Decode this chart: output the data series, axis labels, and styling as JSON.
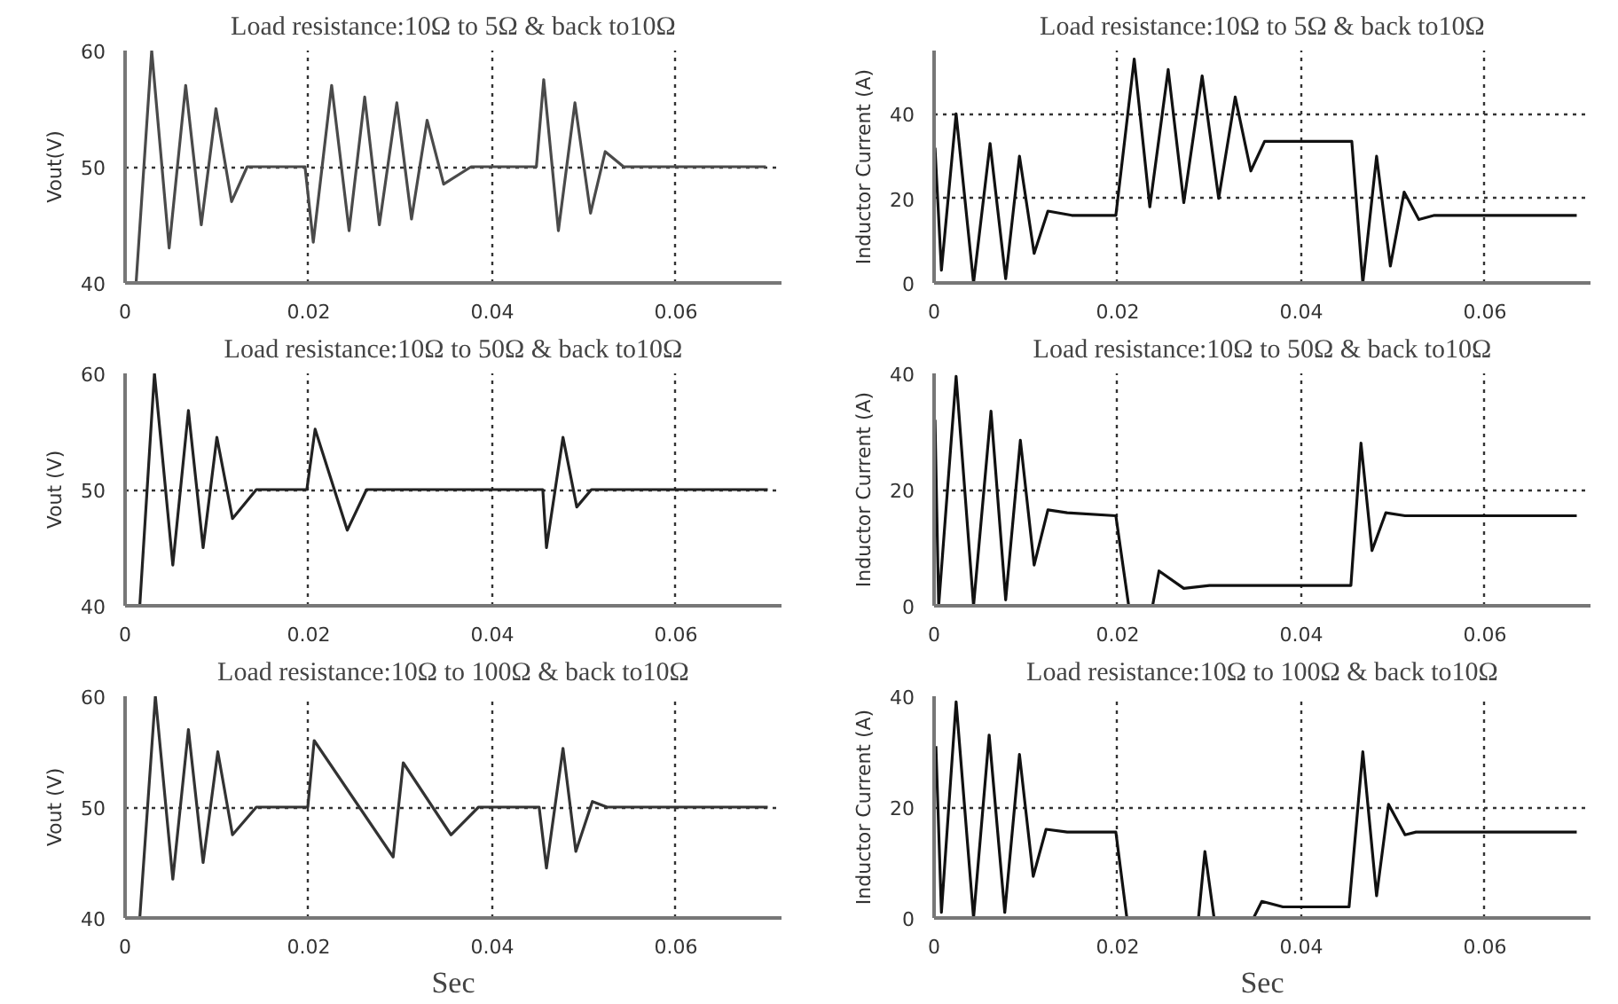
{
  "chart_data": [
    {
      "type": "line",
      "title": "Load resistance:10Ω to 5Ω & back to10Ω",
      "ylabel": "Vout(V)",
      "xlim": [
        0,
        0.0715
      ],
      "xticks": [
        0,
        0.02,
        0.04,
        0.06
      ],
      "ylim": [
        40,
        60
      ],
      "yticks": [
        40,
        50,
        60
      ],
      "grid": true,
      "series": [
        {
          "color": "#4a4a4a",
          "x": [
            0.0012,
            0.0029,
            0.0048,
            0.0066,
            0.0083,
            0.0099,
            0.0116,
            0.0133,
            0.0196,
            0.0205,
            0.0225,
            0.0244,
            0.0261,
            0.0277,
            0.0296,
            0.0312,
            0.0329,
            0.0347,
            0.0377,
            0.0448,
            0.0456,
            0.0472,
            0.049,
            0.0507,
            0.0523,
            0.0543,
            0.0698
          ],
          "values": [
            40,
            60,
            43,
            57,
            45,
            55,
            47,
            50,
            50,
            43.5,
            57,
            44.5,
            56,
            45,
            55.5,
            45.5,
            54,
            48.5,
            50,
            50,
            57.5,
            44.5,
            55.5,
            46,
            51.3,
            50,
            50
          ]
        }
      ]
    },
    {
      "type": "line",
      "title": "Load resistance:10Ω to 5Ω & back to10Ω",
      "ylabel": "Inductor Current (A)",
      "xlim": [
        0,
        0.0715
      ],
      "xticks": [
        0,
        0.02,
        0.04,
        0.06
      ],
      "ylim": [
        0,
        55
      ],
      "yticks": [
        0,
        20,
        40
      ],
      "grid": true,
      "series": [
        {
          "color": "#111111",
          "x": [
            0.0001,
            0.0008,
            0.0024,
            0.0043,
            0.0061,
            0.0078,
            0.0093,
            0.0109,
            0.0124,
            0.015,
            0.0198,
            0.0218,
            0.0235,
            0.0255,
            0.0272,
            0.0292,
            0.031,
            0.0328,
            0.0345,
            0.036,
            0.0455,
            0.0467,
            0.0482,
            0.0497,
            0.0512,
            0.0528,
            0.0545,
            0.07
          ],
          "values": [
            32,
            3,
            40,
            0,
            33,
            1,
            30,
            7,
            17,
            16,
            16,
            53,
            18,
            50.5,
            19,
            49,
            20,
            44,
            26.5,
            33.5,
            33.5,
            0,
            30,
            4,
            21.5,
            15,
            16,
            16
          ]
        }
      ]
    },
    {
      "type": "line",
      "title": "Load resistance:10Ω to 50Ω & back to10Ω",
      "ylabel": "Vout (V)",
      "xlim": [
        0,
        0.0715
      ],
      "xticks": [
        0,
        0.02,
        0.04,
        0.06
      ],
      "ylim": [
        40,
        60
      ],
      "yticks": [
        40,
        50,
        60
      ],
      "grid": true,
      "series": [
        {
          "color": "#222222",
          "x": [
            0.0016,
            0.0032,
            0.0052,
            0.0069,
            0.0085,
            0.01,
            0.0117,
            0.0143,
            0.0198,
            0.0207,
            0.0242,
            0.0263,
            0.0455,
            0.0459,
            0.0477,
            0.0492,
            0.0508,
            0.07
          ],
          "values": [
            40,
            60,
            43.5,
            56.8,
            45,
            54.5,
            47.5,
            50,
            50,
            55.2,
            46.5,
            50,
            50,
            45,
            54.5,
            48.5,
            50,
            50
          ]
        }
      ]
    },
    {
      "type": "line",
      "title": "Load resistance:10Ω to 50Ω & back to10Ω",
      "ylabel": "Inductor Current (A)",
      "xlim": [
        0,
        0.0715
      ],
      "xticks": [
        0,
        0.02,
        0.04,
        0.06
      ],
      "ylim": [
        0,
        40
      ],
      "yticks": [
        0,
        20,
        40
      ],
      "grid": true,
      "series": [
        {
          "color": "#111111",
          "x": [
            0.0001,
            0.0005,
            0.0024,
            0.0043,
            0.0062,
            0.0078,
            0.0094,
            0.0109,
            0.0124,
            0.0145,
            0.0198,
            0.0212,
            0.0238,
            0.0245,
            0.0272,
            0.03,
            0.0454,
            0.0465,
            0.0477,
            0.0492,
            0.0513,
            0.07
          ],
          "values": [
            32,
            0,
            39.5,
            0,
            33.5,
            1,
            28.5,
            7,
            16.5,
            16,
            15.5,
            0,
            0,
            6,
            3,
            3.5,
            3.5,
            28,
            9.5,
            16,
            15.5,
            15.5
          ]
        }
      ]
    },
    {
      "type": "line",
      "title": "Load resistance:10Ω to 100Ω & back to10Ω",
      "ylabel": "Vout (V)",
      "xlabel": "Sec",
      "xlim": [
        0,
        0.0715
      ],
      "xticks": [
        0,
        0.02,
        0.04,
        0.06
      ],
      "ylim": [
        40,
        60
      ],
      "yticks": [
        40,
        50,
        60
      ],
      "grid": true,
      "series": [
        {
          "color": "#333333",
          "x": [
            0.0016,
            0.0033,
            0.0052,
            0.0069,
            0.0085,
            0.0101,
            0.0117,
            0.0143,
            0.0199,
            0.0206,
            0.0292,
            0.0303,
            0.0355,
            0.0385,
            0.0451,
            0.0459,
            0.0477,
            0.0491,
            0.0509,
            0.0525,
            0.07
          ],
          "values": [
            40,
            60,
            43.5,
            57,
            45,
            55,
            47.5,
            50,
            50,
            56,
            45.5,
            54,
            47.5,
            50,
            50,
            44.5,
            55.3,
            46,
            50.5,
            50,
            50
          ]
        }
      ]
    },
    {
      "type": "line",
      "title": "Load resistance:10Ω to 100Ω & back to10Ω",
      "ylabel": "Inductor Current (A)",
      "xlabel": "Sec",
      "xlim": [
        0,
        0.0715
      ],
      "xticks": [
        0,
        0.02,
        0.04,
        0.06
      ],
      "ylim": [
        0,
        40
      ],
      "yticks": [
        0,
        20,
        40
      ],
      "grid": true,
      "series": [
        {
          "color": "#111111",
          "x": [
            0.0002,
            0.0008,
            0.0024,
            0.0043,
            0.006,
            0.0077,
            0.0093,
            0.0108,
            0.0122,
            0.0145,
            0.0198,
            0.021,
            0.0288,
            0.0295,
            0.0305,
            0.0348,
            0.0357,
            0.038,
            0.0452,
            0.0467,
            0.0482,
            0.0495,
            0.0513,
            0.0525,
            0.07
          ],
          "values": [
            31,
            1,
            39,
            0,
            33,
            1,
            29.5,
            7.5,
            16,
            15.5,
            15.5,
            0,
            0,
            12,
            0,
            0,
            3,
            2,
            2,
            30,
            4,
            20.5,
            15,
            15.5,
            15.5
          ]
        }
      ]
    }
  ]
}
